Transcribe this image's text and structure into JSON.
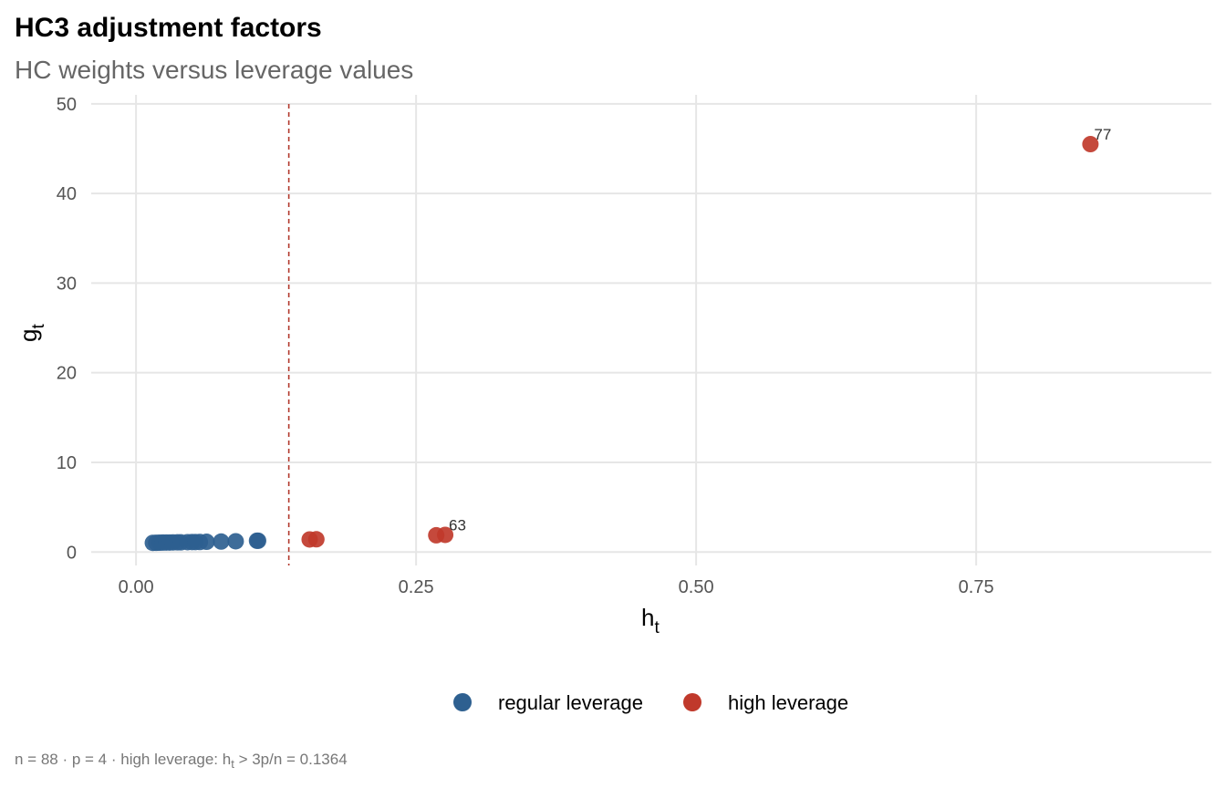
{
  "chart_data": {
    "type": "scatter",
    "title": "HC3 adjustment factors",
    "subtitle": "HC weights versus leverage values",
    "xlabel": "h",
    "xlabel_sub": "t",
    "ylabel": "g",
    "ylabel_sub": "t",
    "xlim": [
      -0.04,
      0.96
    ],
    "ylim": [
      -1.5,
      51
    ],
    "x_ticks": [
      0.0,
      0.25,
      0.5,
      0.75
    ],
    "x_tick_labels": [
      "0.00",
      "0.25",
      "0.50",
      "0.75"
    ],
    "y_ticks": [
      0,
      10,
      20,
      30,
      40,
      50
    ],
    "y_tick_labels": [
      "0",
      "10",
      "20",
      "30",
      "40",
      "50"
    ],
    "grid": true,
    "threshold_line": {
      "x": 0.1364,
      "style": "dashed",
      "color": "#b2382c"
    },
    "legend_position": "bottom",
    "series": [
      {
        "name": "regular leverage",
        "color": "#2e6090",
        "points": [
          {
            "x": 0.015,
            "y": 1.02
          },
          {
            "x": 0.018,
            "y": 1.03
          },
          {
            "x": 0.021,
            "y": 1.04
          },
          {
            "x": 0.024,
            "y": 1.05
          },
          {
            "x": 0.027,
            "y": 1.06
          },
          {
            "x": 0.03,
            "y": 1.06
          },
          {
            "x": 0.033,
            "y": 1.07
          },
          {
            "x": 0.037,
            "y": 1.08
          },
          {
            "x": 0.04,
            "y": 1.08
          },
          {
            "x": 0.046,
            "y": 1.1
          },
          {
            "x": 0.05,
            "y": 1.11
          },
          {
            "x": 0.053,
            "y": 1.11
          },
          {
            "x": 0.057,
            "y": 1.12
          },
          {
            "x": 0.063,
            "y": 1.14
          },
          {
            "x": 0.076,
            "y": 1.17
          },
          {
            "x": 0.089,
            "y": 1.2
          },
          {
            "x": 0.108,
            "y": 1.26
          },
          {
            "x": 0.109,
            "y": 1.26
          }
        ]
      },
      {
        "name": "high leverage",
        "color": "#c0392b",
        "points": [
          {
            "x": 0.155,
            "y": 1.4
          },
          {
            "x": 0.161,
            "y": 1.42
          },
          {
            "x": 0.268,
            "y": 1.87
          },
          {
            "x": 0.276,
            "y": 1.91,
            "label": "63"
          },
          {
            "x": 0.852,
            "y": 45.5,
            "label": "77"
          }
        ]
      }
    ],
    "caption": {
      "prefix": "n = 88  ·  p = 4  ·  high leverage: h",
      "sub": "t",
      "suffix": " > 3p/n = 0.1364"
    }
  }
}
